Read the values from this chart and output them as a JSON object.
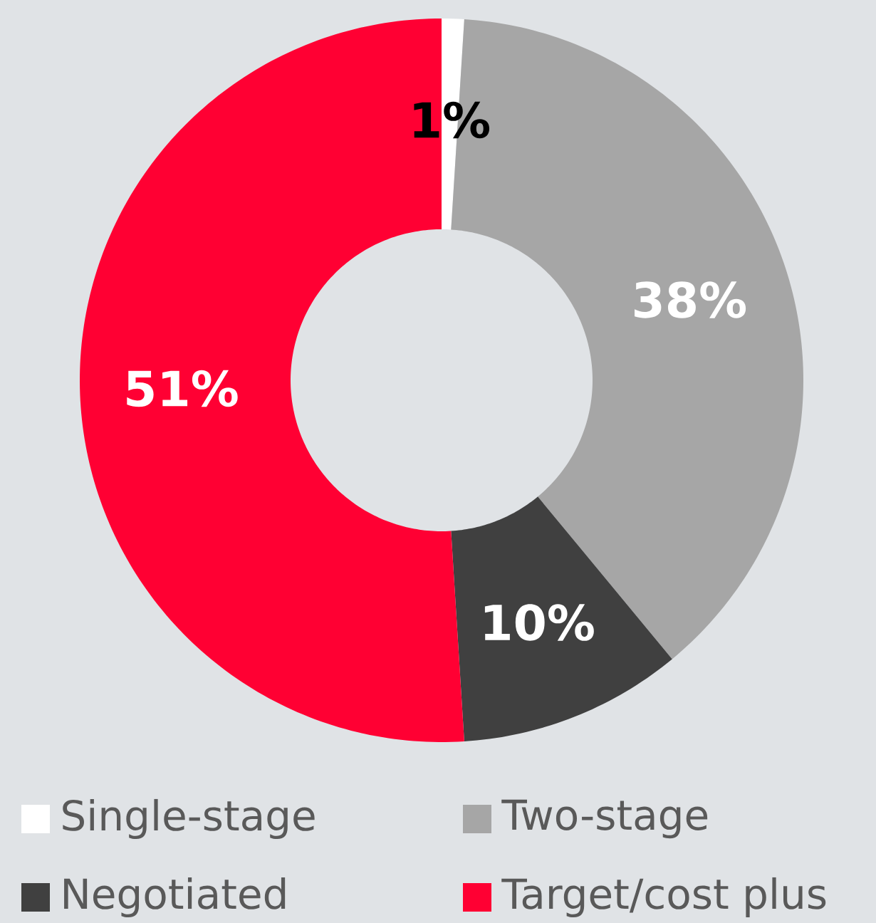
{
  "chart_data": {
    "type": "donut",
    "categories": [
      "Single-stage",
      "Two-stage",
      "Negotiated",
      "Target/cost plus"
    ],
    "values": [
      1,
      38,
      10,
      51
    ],
    "colors": [
      "#ffffff",
      "#a6a6a6",
      "#404040",
      "#ff0033"
    ],
    "value_labels": [
      "1%",
      "38%",
      "10%",
      "51%"
    ],
    "legend": "bottom"
  }
}
